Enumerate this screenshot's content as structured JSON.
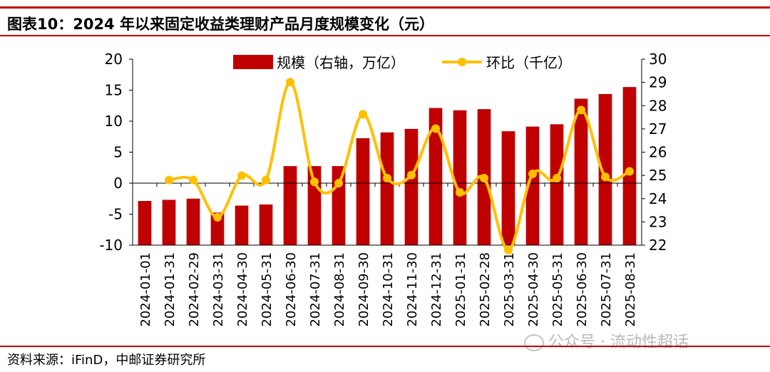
{
  "header": {
    "title": "图表10：2024 年以来固定收益类理财产品月度规模变化（元）"
  },
  "footer": {
    "source": "资料来源：iFinD，中邮证券研究所"
  },
  "watermark": {
    "text": "公众号 · 流动性超话"
  },
  "colors": {
    "accent": "#c00000",
    "line": "#ffc000",
    "axis": "#000000"
  },
  "chart_data": {
    "type": "bar",
    "categories": [
      "2024-01-01",
      "2024-01-31",
      "2024-02-29",
      "2024-03-31",
      "2024-04-30",
      "2024-05-31",
      "2024-06-30",
      "2024-07-31",
      "2024-08-31",
      "2024-09-30",
      "2024-10-31",
      "2024-11-30",
      "2024-12-31",
      "2025-01-31",
      "2025-02-28",
      "2025-03-31",
      "2025-04-30",
      "2025-05-31",
      "2025-06-30",
      "2025-07-31",
      "2025-08-31"
    ],
    "series": [
      {
        "name": "规模（右轴，万亿）",
        "type": "bar",
        "axis": "right",
        "values": [
          23.9,
          23.95,
          24.0,
          23.4,
          23.7,
          23.75,
          25.4,
          25.4,
          25.4,
          26.6,
          26.85,
          27.0,
          27.9,
          27.8,
          27.85,
          26.9,
          27.1,
          27.2,
          28.3,
          28.5,
          28.8
        ]
      },
      {
        "name": "环比（千亿）",
        "type": "line",
        "axis": "left",
        "values": [
          null,
          0.5,
          0.5,
          -5.5,
          1.2,
          0.5,
          16.3,
          0.2,
          0.0,
          11.1,
          0.8,
          1.3,
          8.8,
          -1.5,
          0.8,
          -10.8,
          1.5,
          0.8,
          11.8,
          1.0,
          1.9
        ]
      }
    ],
    "left_axis": {
      "ylim": [
        -10,
        20
      ],
      "ticks": [
        "-10",
        "-5",
        "0",
        "5",
        "10",
        "15",
        "20"
      ]
    },
    "right_axis": {
      "ylim": [
        22,
        30
      ],
      "ticks": [
        "22",
        "23",
        "24",
        "25",
        "26",
        "27",
        "28",
        "29",
        "30"
      ]
    },
    "legend": {
      "position": "top",
      "bar_label": "规模（右轴，万亿）",
      "line_label": "环比（千亿）"
    },
    "grid": false
  }
}
